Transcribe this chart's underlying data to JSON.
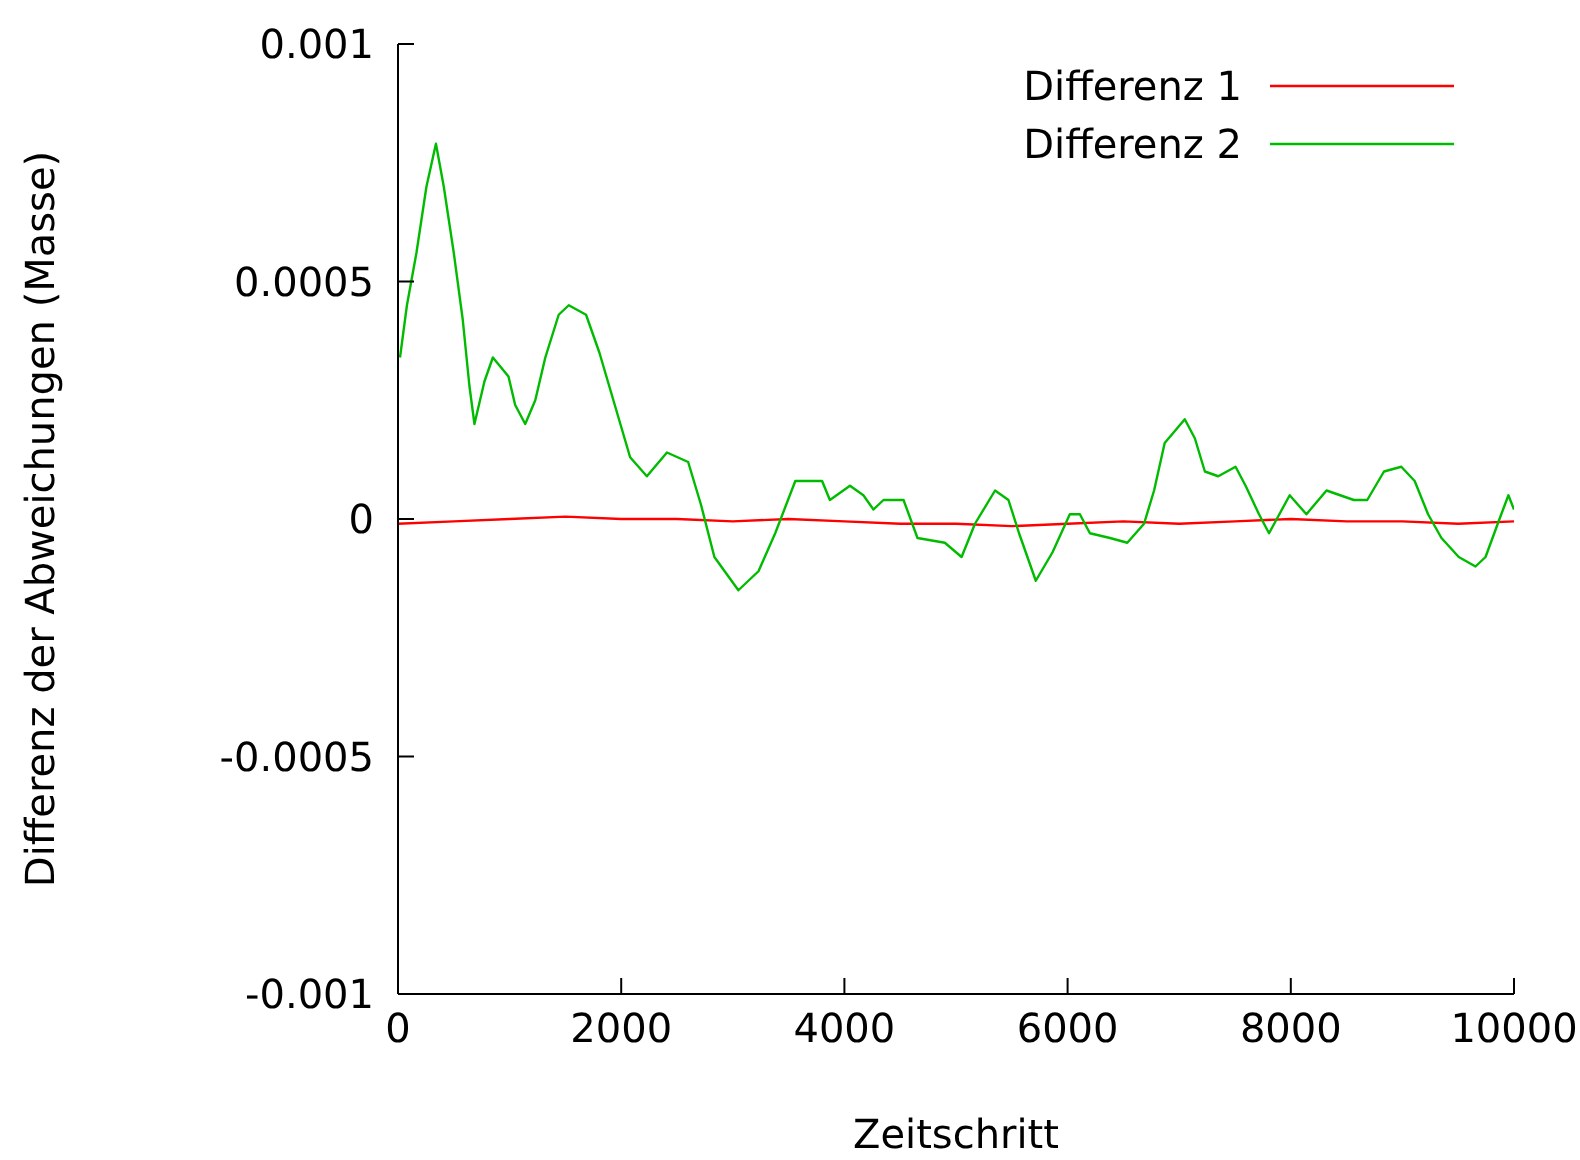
{
  "chart_data": {
    "type": "line",
    "xlabel": "Zeitschritt",
    "ylabel": "Differenz der Abweichungen (Masse)",
    "xlim": [
      0,
      10000
    ],
    "xticks": [
      0,
      2000,
      4000,
      6000,
      8000,
      10000
    ],
    "ylim": [
      -0.001,
      0.001
    ],
    "yticks": [
      -0.001,
      -0.0005,
      0,
      0.0005,
      0.001
    ],
    "legend": "top right",
    "marker": "none",
    "line_style": "solid",
    "series": [
      {
        "name": "Differenz 1",
        "color": "#ff0000",
        "x": [
          0,
          500,
          1000,
          1500,
          2000,
          2500,
          3000,
          3500,
          4000,
          4500,
          5000,
          5500,
          6000,
          6500,
          7000,
          7500,
          8000,
          8500,
          9000,
          9500,
          10000
        ],
        "values": [
          -1e-05,
          -5e-06,
          0,
          5e-06,
          0,
          0,
          -5e-06,
          0,
          -5e-06,
          -1e-05,
          -1e-05,
          -1.5e-05,
          -1e-05,
          -5e-06,
          -1e-05,
          -5e-06,
          0,
          -5e-06,
          -5e-06,
          -1e-05,
          -5e-06
        ]
      },
      {
        "name": "Differenz 2",
        "color": "#00bb00",
        "x": [
          18,
          80,
          165,
          255,
          340,
          410,
          500,
          580,
          640,
          685,
          775,
          850,
          990,
          1050,
          1140,
          1230,
          1320,
          1440,
          1530,
          1685,
          1805,
          1930,
          2080,
          2230,
          2410,
          2600,
          2715,
          2835,
          3050,
          3230,
          3380,
          3560,
          3800,
          3870,
          4050,
          4170,
          4260,
          4350,
          4530,
          4655,
          4900,
          5050,
          5170,
          5350,
          5470,
          5565,
          5715,
          5865,
          6020,
          6110,
          6200,
          6380,
          6535,
          6685,
          6775,
          6870,
          7050,
          7140,
          7230,
          7350,
          7505,
          7595,
          7715,
          7805,
          7990,
          8140,
          8320,
          8565,
          8685,
          8835,
          8990,
          9110,
          9230,
          9350,
          9505,
          9655,
          9745,
          9870,
          9950,
          10000
        ],
        "values": [
          0.00034,
          0.00045,
          0.00056,
          0.0007,
          0.00079,
          0.0007,
          0.00056,
          0.00042,
          0.00028,
          0.0002,
          0.00029,
          0.00034,
          0.0003,
          0.00024,
          0.0002,
          0.00025,
          0.00034,
          0.00043,
          0.00045,
          0.00043,
          0.00035,
          0.00025,
          0.00013,
          9e-05,
          0.00014,
          0.00012,
          3e-05,
          -8e-05,
          -0.00015,
          -0.00011,
          -3e-05,
          8e-05,
          8e-05,
          4e-05,
          7e-05,
          5e-05,
          2e-05,
          4e-05,
          4e-05,
          -4e-05,
          -5e-05,
          -8e-05,
          -1e-05,
          6e-05,
          4e-05,
          -3e-05,
          -0.00013,
          -7e-05,
          1e-05,
          1e-05,
          -3e-05,
          -4e-05,
          -5e-05,
          -1e-05,
          6e-05,
          0.00016,
          0.00021,
          0.00017,
          0.0001,
          9e-05,
          0.00011,
          7e-05,
          1e-05,
          -3e-05,
          5e-05,
          1e-05,
          6e-05,
          4e-05,
          4e-05,
          0.0001,
          0.00011,
          8e-05,
          1e-05,
          -4e-05,
          -8e-05,
          -0.0001,
          -8e-05,
          0,
          5e-05,
          2e-05
        ]
      }
    ]
  }
}
